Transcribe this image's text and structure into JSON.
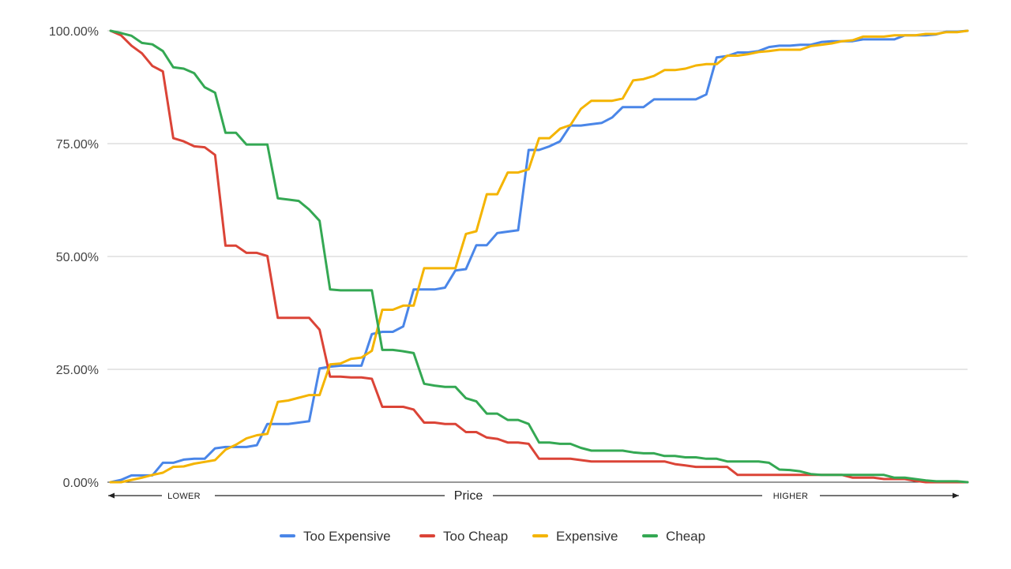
{
  "chart_data": {
    "type": "line",
    "title": "",
    "xlabel": "Price",
    "xaxis_left_label": "LOWER",
    "xaxis_right_label": "HIGHER",
    "ylabel": "",
    "ylim": [
      0,
      100
    ],
    "yticks": [
      "0.00%",
      "25.00%",
      "50.00%",
      "75.00%",
      "100.00%"
    ],
    "grid": true,
    "legend_position": "bottom",
    "series": [
      {
        "name": "Too Expensive",
        "color": "#4a86e8",
        "values": [
          0,
          0.5,
          1.5,
          1.5,
          1.5,
          4.3,
          4.3,
          5,
          5.2,
          5.2,
          7.5,
          7.8,
          7.8,
          7.8,
          8.2,
          12.9,
          12.9,
          12.9,
          13.2,
          13.5,
          25.2,
          25.6,
          25.8,
          25.8,
          25.8,
          32.8,
          33.3,
          33.3,
          34.5,
          42.7,
          42.7,
          42.7,
          43.1,
          46.9,
          47.2,
          52.5,
          52.5,
          55.2,
          55.5,
          55.8,
          73.6,
          73.6,
          74.4,
          75.5,
          79,
          79,
          79.3,
          79.6,
          80.8,
          83.1,
          83.1,
          83.1,
          84.8,
          84.8,
          84.8,
          84.8,
          84.8,
          85.9,
          94.1,
          94.4,
          95.2,
          95.2,
          95.5,
          96.4,
          96.7,
          96.7,
          96.9,
          96.9,
          97.5,
          97.7,
          97.7,
          97.7,
          98.1,
          98.1,
          98.1,
          98.1,
          99,
          99,
          99,
          99.2,
          99.8,
          99.8,
          100
        ]
      },
      {
        "name": "Too Cheap",
        "color": "#db4437",
        "values": [
          100,
          99,
          96.7,
          95,
          92.2,
          91,
          76.2,
          75.5,
          74.4,
          74.2,
          72.5,
          52.4,
          52.4,
          50.8,
          50.8,
          50.1,
          36.4,
          36.4,
          36.4,
          36.4,
          33.8,
          23.4,
          23.4,
          23.2,
          23.2,
          22.9,
          16.7,
          16.7,
          16.7,
          16.1,
          13.2,
          13.2,
          12.9,
          12.9,
          11.1,
          11.1,
          9.9,
          9.6,
          8.8,
          8.8,
          8.5,
          5.2,
          5.2,
          5.2,
          5.2,
          4.9,
          4.6,
          4.6,
          4.6,
          4.6,
          4.6,
          4.6,
          4.6,
          4.6,
          4,
          3.7,
          3.4,
          3.4,
          3.4,
          3.4,
          1.6,
          1.6,
          1.6,
          1.6,
          1.6,
          1.6,
          1.6,
          1.6,
          1.6,
          1.6,
          1.6,
          1,
          1,
          1,
          0.7,
          0.7,
          0.7,
          0.3,
          0,
          0,
          0,
          0,
          0
        ]
      },
      {
        "name": "Expensive",
        "color": "#f4b400",
        "values": [
          0,
          0,
          0.5,
          1,
          1.6,
          2.1,
          3.4,
          3.5,
          4.1,
          4.5,
          4.9,
          7.2,
          8.3,
          9.7,
          10.4,
          10.7,
          17.8,
          18.1,
          18.7,
          19.3,
          19.3,
          26.1,
          26.3,
          27.3,
          27.6,
          29.1,
          38.2,
          38.2,
          39.1,
          39.1,
          47.4,
          47.4,
          47.4,
          47.4,
          55,
          55.6,
          63.8,
          63.8,
          68.6,
          68.6,
          69.3,
          76.2,
          76.2,
          78.3,
          79.1,
          82.7,
          84.5,
          84.5,
          84.5,
          85,
          89,
          89.3,
          90,
          91.3,
          91.3,
          91.6,
          92.3,
          92.6,
          92.6,
          94.5,
          94.5,
          94.8,
          95.3,
          95.5,
          95.8,
          95.8,
          95.8,
          96.6,
          96.9,
          97.2,
          97.7,
          97.9,
          98.7,
          98.7,
          98.7,
          99,
          99,
          99,
          99.3,
          99.3,
          99.7,
          99.7,
          100
        ]
      },
      {
        "name": "Cheap",
        "color": "#34a853",
        "values": [
          100,
          99.5,
          98.9,
          97.3,
          97,
          95.5,
          91.9,
          91.6,
          90.6,
          87.5,
          86.3,
          77.4,
          77.4,
          74.8,
          74.8,
          74.8,
          62.9,
          62.6,
          62.3,
          60.4,
          57.9,
          42.7,
          42.5,
          42.5,
          42.5,
          42.5,
          29.3,
          29.3,
          29,
          28.6,
          21.8,
          21.4,
          21.1,
          21.1,
          18.6,
          17.9,
          15.2,
          15.2,
          13.8,
          13.8,
          12.9,
          8.8,
          8.8,
          8.5,
          8.5,
          7.6,
          7,
          7,
          7,
          7,
          6.6,
          6.4,
          6.4,
          5.8,
          5.8,
          5.5,
          5.5,
          5.2,
          5.2,
          4.6,
          4.6,
          4.6,
          4.6,
          4.3,
          2.8,
          2.7,
          2.4,
          1.8,
          1.6,
          1.6,
          1.6,
          1.6,
          1.6,
          1.6,
          1.6,
          1,
          1,
          0.7,
          0.4,
          0.2,
          0.2,
          0.2,
          0
        ]
      }
    ]
  }
}
